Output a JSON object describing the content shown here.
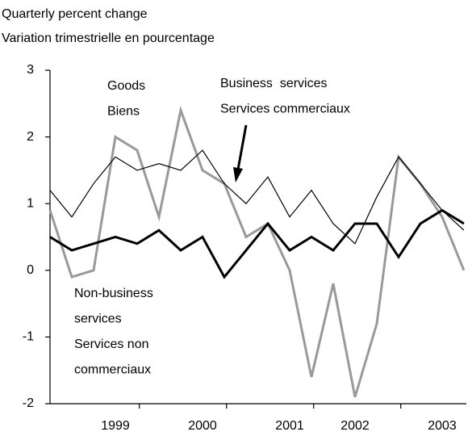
{
  "chart_data": {
    "type": "line",
    "title_lines": [
      "Quarterly percent change",
      "Variation trimestrielle en pourcentage"
    ],
    "categories": [
      null,
      null,
      null,
      "1999",
      null,
      null,
      null,
      "2000",
      null,
      null,
      null,
      "2001",
      null,
      null,
      "2002",
      null,
      null,
      null,
      "2003",
      null
    ],
    "series": [
      {
        "label_lines": [
          "Goods",
          "Biens"
        ],
        "color": "#999999",
        "width": 3,
        "values": [
          0.9,
          -0.1,
          0,
          2.0,
          1.8,
          0.8,
          2.4,
          1.5,
          1.3,
          0.5,
          0.7,
          0,
          -1.6,
          -0.2,
          -1.9,
          -0.8,
          1.7,
          1.3,
          0.8,
          0
        ]
      },
      {
        "label_lines": [
          "Business  services",
          "Services commerciaux"
        ],
        "color": "#000000",
        "width": 1.2,
        "values": [
          1.2,
          0.8,
          1.3,
          1.7,
          1.5,
          1.6,
          1.5,
          1.8,
          1.3,
          1.0,
          1.4,
          0.8,
          1.2,
          0.7,
          0.4,
          1.1,
          1.7,
          1.3,
          0.9,
          0.6
        ]
      },
      {
        "label_lines": [
          "Non-business",
          "services",
          "Services non",
          "commerciaux"
        ],
        "color": "#000000",
        "width": 3,
        "values": [
          0.5,
          0.3,
          0.4,
          0.5,
          0.4,
          0.6,
          0.3,
          0.5,
          -0.1,
          0.3,
          0.7,
          0.3,
          0.5,
          0.3,
          0.7,
          0.7,
          0.2,
          0.7,
          0.9,
          0.7
        ]
      }
    ],
    "ylim": [
      -2,
      3
    ],
    "yticks": [
      -2,
      -1,
      0,
      1,
      2,
      3
    ]
  }
}
